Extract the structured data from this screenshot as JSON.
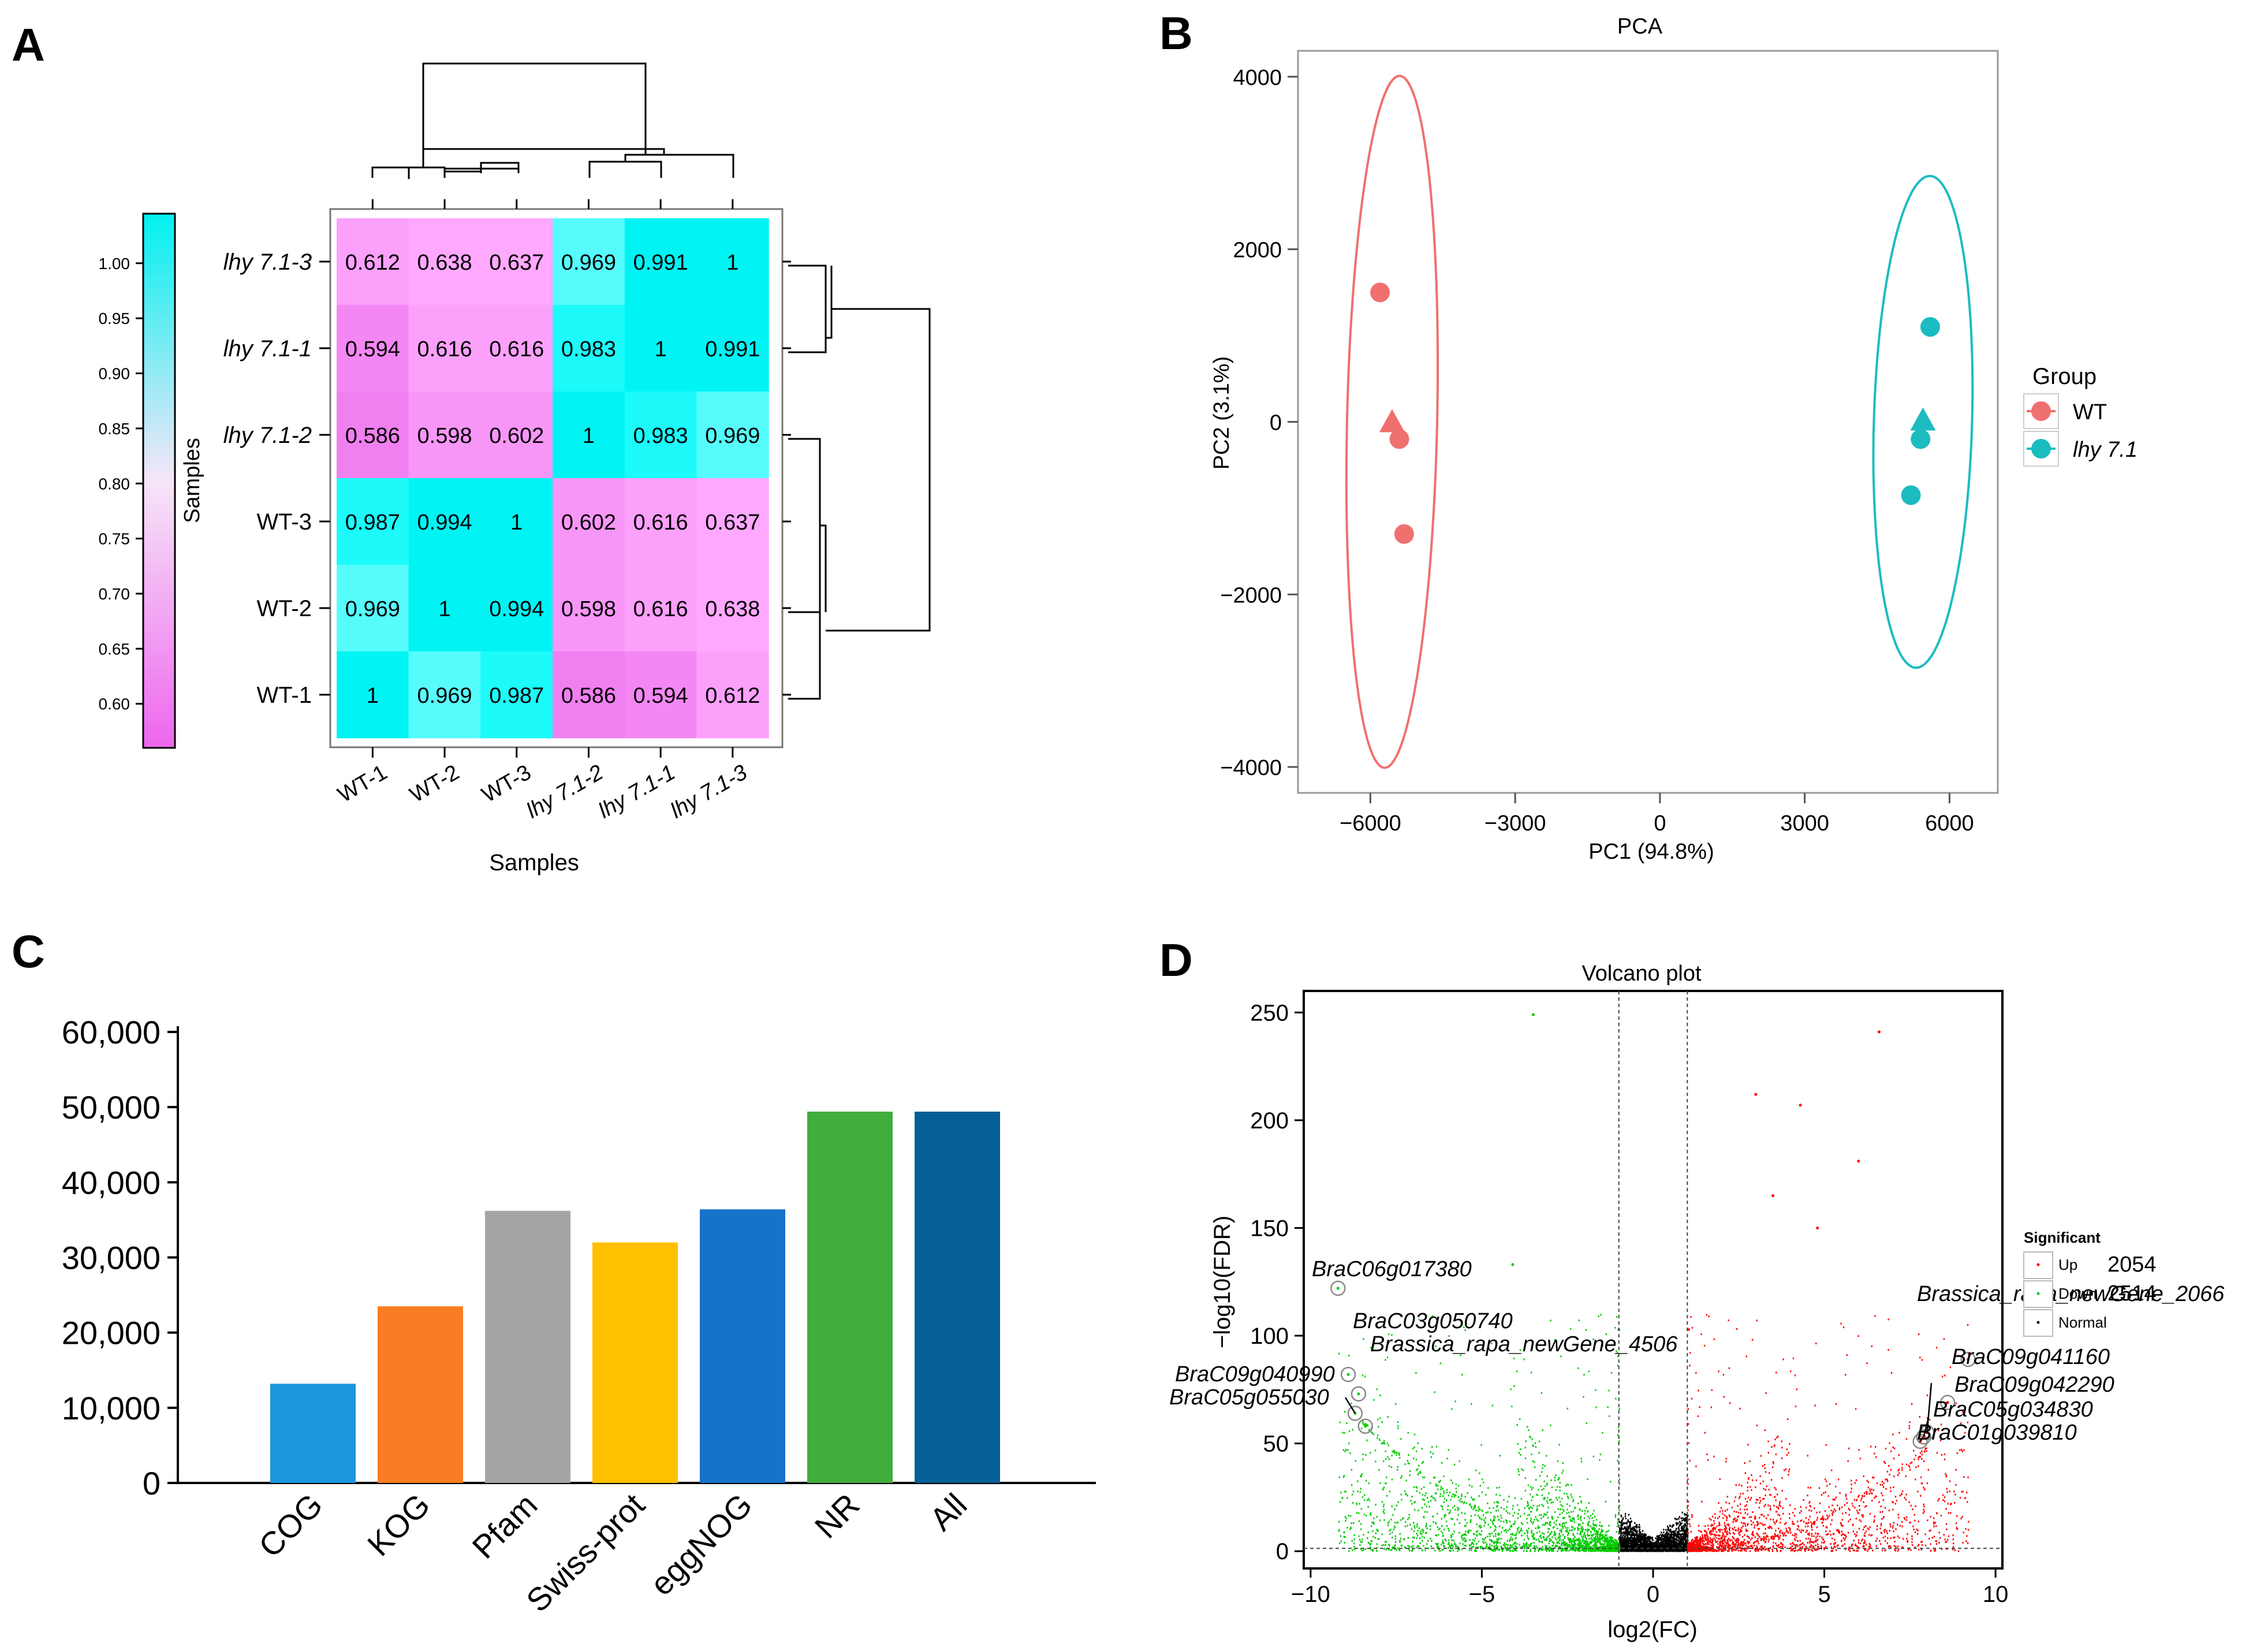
{
  "panels": {
    "a": "A",
    "b": "B",
    "c": "C",
    "d": "D"
  },
  "heatmap": {
    "samples": [
      "WT-1",
      "WT-2",
      "WT-3",
      "lhy 7.1-2",
      "lhy 7.1-1",
      "lhy 7.1-3"
    ],
    "row_order": [
      "lhy 7.1-3",
      "lhy 7.1-1",
      "lhy 7.1-2",
      "WT-3",
      "WT-2",
      "WT-1"
    ],
    "matrix": [
      [
        "0.612",
        "0.638",
        "0.637",
        "0.969",
        "0.991",
        "1"
      ],
      [
        "0.594",
        "0.616",
        "0.616",
        "0.983",
        "1",
        "0.991"
      ],
      [
        "0.586",
        "0.598",
        "0.602",
        "1",
        "0.983",
        "0.969"
      ],
      [
        "0.987",
        "0.994",
        "1",
        "0.602",
        "0.616",
        "0.637"
      ],
      [
        "0.969",
        "1",
        "0.994",
        "0.598",
        "0.616",
        "0.638"
      ],
      [
        "1",
        "0.969",
        "0.987",
        "0.586",
        "0.594",
        "0.612"
      ]
    ],
    "xlabel": "Samples",
    "colorbar_label": "Samples",
    "colorbar_ticks": [
      "1.00",
      "0.95",
      "0.90",
      "0.85",
      "0.80",
      "0.75",
      "0.70",
      "0.65",
      "0.60"
    ],
    "colors": {
      "low": "#ee66ee",
      "high": "#00f0f0"
    }
  },
  "chart_data": [
    {
      "type": "scatter",
      "title": "PCA",
      "xlabel": "PC1 (94.8%)",
      "ylabel": "PC2 (3.1%)",
      "xlim": [
        -7500,
        7000
      ],
      "ylim": [
        -4300,
        4300
      ],
      "xticks": [
        -6000,
        -3000,
        0,
        3000,
        6000
      ],
      "yticks": [
        4000,
        2000,
        0,
        -2000,
        -4000
      ],
      "xtick_labels": [
        "−6000",
        "−3000",
        "0",
        "3000",
        "6000"
      ],
      "ytick_labels": [
        "4000",
        "2000",
        "0",
        "−2000",
        "−4000"
      ],
      "legend_title": "Group",
      "series": [
        {
          "name": "WT",
          "color": "#f07070",
          "points": [
            [
              -5800,
              1500
            ],
            [
              -5400,
              -200
            ],
            [
              -5300,
              -1300
            ]
          ],
          "centroid": [
            -5550,
            0
          ],
          "ellipse": {
            "cx": -5550,
            "cy": 0,
            "a": 4010,
            "b": 110,
            "angle": -2.8
          }
        },
        {
          "name": "lhy 7.1",
          "color": "#1bbcc0",
          "points": [
            [
              5600,
              1100
            ],
            [
              5400,
              -200
            ],
            [
              5200,
              -850
            ]
          ],
          "centroid": [
            5450,
            20
          ],
          "ellipse": {
            "cx": 5450,
            "cy": 0,
            "a": 2850,
            "b": 120,
            "angle": 3.6
          }
        }
      ]
    },
    {
      "type": "bar",
      "categories": [
        "COG",
        "KOG",
        "Pfam",
        "Swiss-prot",
        "eggNOG",
        "NR",
        "All"
      ],
      "values": [
        13200,
        23500,
        36200,
        32000,
        36400,
        49400,
        49400
      ],
      "colors": [
        "#1b95dd",
        "#fb7d23",
        "#a5a5a5",
        "#ffc000",
        "#1772c9",
        "#41ad3c",
        "#045f96"
      ],
      "ylim": [
        0,
        60000
      ],
      "yticks": [
        0,
        10000,
        20000,
        30000,
        40000,
        50000,
        60000
      ],
      "ytick_labels": [
        "0",
        "10,000",
        "20,000",
        "30,000",
        "40,000",
        "50,000",
        "60,000"
      ]
    },
    {
      "type": "scatter",
      "title": "Volcano plot",
      "xlabel": "log2(FC)",
      "ylabel": "−log10(FDR)",
      "xlim": [
        -10.2,
        10.2
      ],
      "ylim": [
        -8,
        260
      ],
      "xticks": [
        -10,
        -5,
        0,
        5,
        10
      ],
      "yticks": [
        0,
        50,
        100,
        150,
        200,
        250
      ],
      "xtick_labels": [
        "−10",
        "−5",
        "0",
        "5",
        "10"
      ],
      "ytick_labels": [
        "0",
        "50",
        "100",
        "150",
        "200",
        "250"
      ],
      "thresholds": {
        "x": [
          -1,
          1
        ],
        "y": 1.3
      },
      "legend_title": "Significant",
      "legend": [
        {
          "name": "Up",
          "count": "2054",
          "color": "#ff0000"
        },
        {
          "name": "Down",
          "count": "2514",
          "color": "#00cc00"
        },
        {
          "name": "Normal",
          "count": "",
          "color": "#000000"
        }
      ],
      "highlights": [
        {
          "label": "BraC06g017380",
          "x": -9.2,
          "y": 122,
          "side": "down"
        },
        {
          "label": "BraC03g050740",
          "x": -8.9,
          "y": 82,
          "side": "down"
        },
        {
          "label": "Brassica_rapa_newGene_4506",
          "x": -8.6,
          "y": 73,
          "side": "down"
        },
        {
          "label": "BraC09g040990",
          "x": -8.7,
          "y": 64,
          "side": "down"
        },
        {
          "label": "BraC05g055030",
          "x": -8.4,
          "y": 58,
          "side": "down"
        },
        {
          "label": "Brassica_rapa_newGene_2066",
          "x": 9.2,
          "y": 89,
          "side": "up"
        },
        {
          "label": "BraC09g041160",
          "x": 8.6,
          "y": 69,
          "side": "up"
        },
        {
          "label": "BraC09g042290",
          "x": 8.0,
          "y": 55,
          "side": "up"
        },
        {
          "label": "BraC05g034830",
          "x": 7.9,
          "y": 53,
          "side": "up"
        },
        {
          "label": "BraC01g039810",
          "x": 7.8,
          "y": 51,
          "side": "up"
        }
      ],
      "outliers": [
        {
          "x": -3.5,
          "y": 249,
          "side": "down"
        },
        {
          "x": 6.6,
          "y": 241,
          "side": "up"
        },
        {
          "x": 3.0,
          "y": 212,
          "side": "up"
        },
        {
          "x": 4.3,
          "y": 207,
          "side": "up"
        },
        {
          "x": 6.0,
          "y": 181,
          "side": "up"
        },
        {
          "x": 3.5,
          "y": 165,
          "side": "up"
        },
        {
          "x": -4.1,
          "y": 133,
          "side": "down"
        },
        {
          "x": 4.8,
          "y": 150,
          "side": "up"
        }
      ]
    }
  ]
}
